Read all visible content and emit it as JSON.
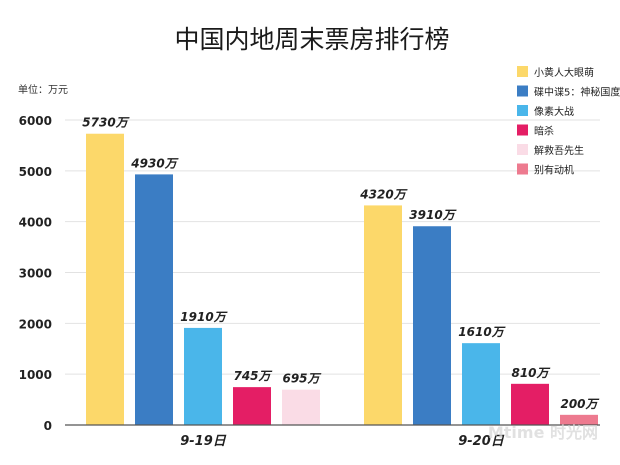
{
  "chart_data": {
    "type": "bar",
    "title": "中国内地周末票房排行榜",
    "unit_label": "单位：万元",
    "value_suffix": "万",
    "ylim": [
      0,
      6000
    ],
    "yticks": [
      "0",
      "1000",
      "2000",
      "3000",
      "4000",
      "5000",
      "6000"
    ],
    "categories": [
      "9-19日",
      "9-20日"
    ],
    "series": [
      {
        "name": "小黄人大眼萌",
        "color": "#fcd86a",
        "values": [
          5730,
          4320
        ]
      },
      {
        "name": "碟中谍5：神秘国度",
        "color": "#3b7dc4",
        "values": [
          4930,
          3910
        ]
      },
      {
        "name": "像素大战",
        "color": "#4ab6ea",
        "values": [
          1910,
          1610
        ]
      },
      {
        "name": "暗杀",
        "color": "#e41e65",
        "values": [
          745,
          810
        ]
      },
      {
        "name": "解救吾先生",
        "color": "#fadce6",
        "values": [
          695,
          null
        ]
      },
      {
        "name": "别有动机",
        "color": "#ed7a8f",
        "values": [
          null,
          200
        ]
      }
    ],
    "grid": true,
    "legend": "top-right"
  },
  "watermark": "Mtime 时光网"
}
